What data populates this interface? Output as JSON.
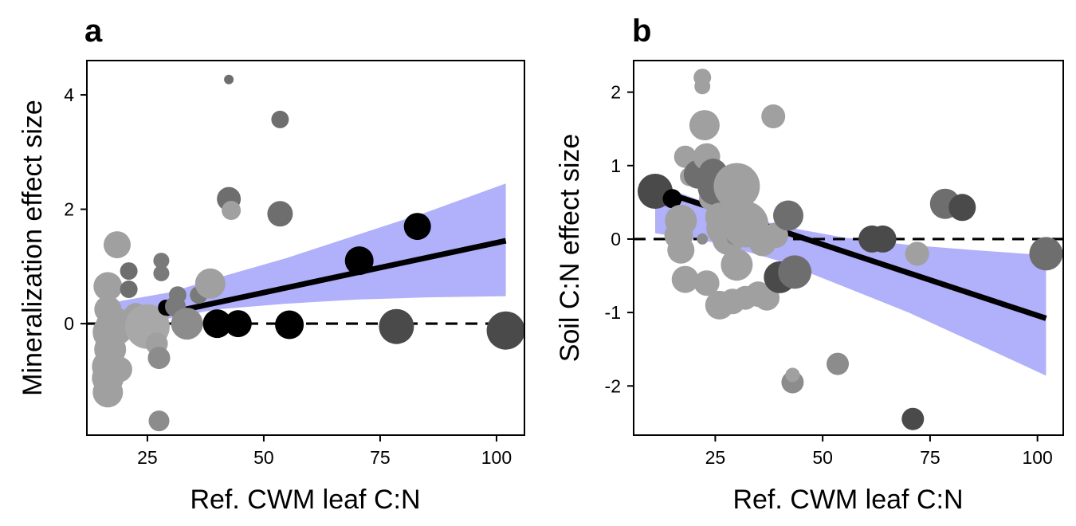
{
  "chart_data": [
    {
      "type": "scatter",
      "panel_label": "a",
      "xlabel": "Ref. CWM leaf C:N",
      "ylabel": "Mineralization effect size",
      "xlim": [
        12,
        106
      ],
      "ylim": [
        -1.95,
        4.6
      ],
      "xticks": [
        25,
        50,
        75,
        100
      ],
      "yticks": [
        0,
        2,
        4
      ],
      "reference_line_y": 0,
      "ribbon_color": "#b0b0fb",
      "line_color": "#000000",
      "fit_line": {
        "x": [
          16,
          102
        ],
        "y": [
          -0.05,
          1.45
        ]
      },
      "ribbon": {
        "x": [
          16,
          30,
          40,
          55,
          70,
          85,
          102
        ],
        "lower": [
          -0.45,
          0.1,
          0.25,
          0.35,
          0.42,
          0.46,
          0.48
        ],
        "upper": [
          0.35,
          0.55,
          0.8,
          1.15,
          1.55,
          1.95,
          2.45
        ]
      },
      "points": [
        {
          "x": 16.5,
          "y": 0.65,
          "size": 18,
          "color": "#a0a0a0"
        },
        {
          "x": 16.5,
          "y": 0.25,
          "size": 17,
          "color": "#a0a0a0"
        },
        {
          "x": 17,
          "y": -0.15,
          "size": 22,
          "color": "#a0a0a0"
        },
        {
          "x": 17,
          "y": -0.45,
          "size": 20,
          "color": "#a0a0a0"
        },
        {
          "x": 16.5,
          "y": -0.75,
          "size": 20,
          "color": "#a0a0a0"
        },
        {
          "x": 16.5,
          "y": -0.95,
          "size": 20,
          "color": "#a0a0a0"
        },
        {
          "x": 16.5,
          "y": -1.2,
          "size": 19,
          "color": "#a0a0a0"
        },
        {
          "x": 18,
          "y": -0.05,
          "size": 24,
          "color": "#a0a0a0"
        },
        {
          "x": 19,
          "y": -0.8,
          "size": 16,
          "color": "#a0a0a0"
        },
        {
          "x": 18.5,
          "y": 1.38,
          "size": 17,
          "color": "#a0a0a0"
        },
        {
          "x": 21,
          "y": 0.92,
          "size": 11,
          "color": "#6e6e6e"
        },
        {
          "x": 21,
          "y": 0.6,
          "size": 11,
          "color": "#6e6e6e"
        },
        {
          "x": 22.5,
          "y": 0.15,
          "size": 15,
          "color": "#a0a0a0"
        },
        {
          "x": 25,
          "y": -0.05,
          "size": 28,
          "color": "#a8a8a8"
        },
        {
          "x": 27,
          "y": -0.35,
          "size": 14,
          "color": "#a0a0a0"
        },
        {
          "x": 27.5,
          "y": -0.6,
          "size": 14,
          "color": "#8c8c8c"
        },
        {
          "x": 27.5,
          "y": -1.7,
          "size": 13,
          "color": "#8c8c8c"
        },
        {
          "x": 28,
          "y": 1.1,
          "size": 10,
          "color": "#7a7a7a"
        },
        {
          "x": 28,
          "y": 0.88,
          "size": 10,
          "color": "#7a7a7a"
        },
        {
          "x": 29,
          "y": 0.28,
          "size": 10,
          "color": "#000000"
        },
        {
          "x": 31,
          "y": 0.3,
          "size": 13,
          "color": "#7a7a7a"
        },
        {
          "x": 31.5,
          "y": 0.5,
          "size": 11,
          "color": "#7a7a7a"
        },
        {
          "x": 33.5,
          "y": 0.0,
          "size": 20,
          "color": "#8c8c8c"
        },
        {
          "x": 36,
          "y": 0.5,
          "size": 11,
          "color": "#7a7a7a"
        },
        {
          "x": 38.5,
          "y": 0.7,
          "size": 19,
          "color": "#a0a0a0"
        },
        {
          "x": 40,
          "y": 0.0,
          "size": 18,
          "color": "#000000"
        },
        {
          "x": 44.5,
          "y": 0.0,
          "size": 17,
          "color": "#000000"
        },
        {
          "x": 42.5,
          "y": 4.27,
          "size": 6,
          "color": "#6e6e6e"
        },
        {
          "x": 42.5,
          "y": 2.18,
          "size": 15,
          "color": "#6e6e6e"
        },
        {
          "x": 43,
          "y": 1.98,
          "size": 12,
          "color": "#a0a0a0"
        },
        {
          "x": 53.5,
          "y": 3.57,
          "size": 11,
          "color": "#6e6e6e"
        },
        {
          "x": 53.5,
          "y": 1.92,
          "size": 16,
          "color": "#6e6e6e"
        },
        {
          "x": 55.5,
          "y": -0.02,
          "size": 18,
          "color": "#000000"
        },
        {
          "x": 70.5,
          "y": 1.1,
          "size": 18,
          "color": "#000000"
        },
        {
          "x": 78.5,
          "y": -0.05,
          "size": 22,
          "color": "#4a4a4a"
        },
        {
          "x": 83,
          "y": 1.7,
          "size": 17,
          "color": "#000000"
        },
        {
          "x": 102,
          "y": -0.12,
          "size": 24,
          "color": "#4a4a4a"
        }
      ]
    },
    {
      "type": "scatter",
      "panel_label": "b",
      "xlabel": "Ref. CWM leaf C:N",
      "ylabel": "Soil C:N effect size",
      "xlim": [
        6,
        106
      ],
      "ylim": [
        -2.67,
        2.43
      ],
      "xticks": [
        25,
        50,
        75,
        100
      ],
      "yticks": [
        2,
        1,
        0,
        -1,
        -2
      ],
      "ytick_labels": [
        "2",
        "1",
        "0",
        "-1",
        "-2"
      ],
      "reference_line_y": 0,
      "ribbon_color": "#b0b0fb",
      "line_color": "#000000",
      "fit_line": {
        "x": [
          11,
          102
        ],
        "y": [
          0.68,
          -1.08
        ]
      },
      "ribbon": {
        "x": [
          11,
          25,
          40,
          55,
          70,
          85,
          102
        ],
        "lower": [
          0.08,
          -0.05,
          -0.3,
          -0.65,
          -1.0,
          -1.4,
          -1.86
        ],
        "upper": [
          0.75,
          0.45,
          0.18,
          0.02,
          -0.08,
          -0.15,
          -0.22
        ]
      },
      "points": [
        {
          "x": 11,
          "y": 0.65,
          "size": 22,
          "color": "#4a4a4a"
        },
        {
          "x": 15,
          "y": 0.55,
          "size": 12,
          "color": "#000000"
        },
        {
          "x": 17,
          "y": 0.25,
          "size": 20,
          "color": "#a0a0a0"
        },
        {
          "x": 16.5,
          "y": 0.05,
          "size": 18,
          "color": "#a0a0a0"
        },
        {
          "x": 17,
          "y": -0.15,
          "size": 17,
          "color": "#a0a0a0"
        },
        {
          "x": 18,
          "y": -0.55,
          "size": 17,
          "color": "#a0a0a0"
        },
        {
          "x": 18,
          "y": 1.12,
          "size": 14,
          "color": "#a0a0a0"
        },
        {
          "x": 19,
          "y": 0.85,
          "size": 12,
          "color": "#a0a0a0"
        },
        {
          "x": 21,
          "y": 0.88,
          "size": 18,
          "color": "#6e6e6e"
        },
        {
          "x": 22,
          "y": 2.2,
          "size": 11,
          "color": "#a0a0a0"
        },
        {
          "x": 22,
          "y": 2.08,
          "size": 10,
          "color": "#a0a0a0"
        },
        {
          "x": 22.5,
          "y": 1.55,
          "size": 19,
          "color": "#a0a0a0"
        },
        {
          "x": 23,
          "y": 1.12,
          "size": 17,
          "color": "#a0a0a0"
        },
        {
          "x": 24,
          "y": 0.55,
          "size": 15,
          "color": "#a0a0a0"
        },
        {
          "x": 24.5,
          "y": 0.9,
          "size": 18,
          "color": "#6e6e6e"
        },
        {
          "x": 25,
          "y": 0.7,
          "size": 22,
          "color": "#6e6e6e"
        },
        {
          "x": 23,
          "y": -0.6,
          "size": 16,
          "color": "#a0a0a0"
        },
        {
          "x": 26,
          "y": 0.3,
          "size": 18,
          "color": "#a0a0a0"
        },
        {
          "x": 27,
          "y": 0.15,
          "size": 22,
          "color": "#a0a0a0"
        },
        {
          "x": 28,
          "y": 0.0,
          "size": 20,
          "color": "#a0a0a0"
        },
        {
          "x": 22,
          "y": 0.0,
          "size": 7,
          "color": "#8c8c8c"
        },
        {
          "x": 29,
          "y": 0.0,
          "size": 7,
          "color": "#8c8c8c"
        },
        {
          "x": 33,
          "y": 0.0,
          "size": 7,
          "color": "#8c8c8c"
        },
        {
          "x": 37,
          "y": 0.0,
          "size": 7,
          "color": "#8c8c8c"
        },
        {
          "x": 30,
          "y": 0.72,
          "size": 29,
          "color": "#a0a0a0"
        },
        {
          "x": 32,
          "y": 0.2,
          "size": 29,
          "color": "#a0a0a0"
        },
        {
          "x": 30,
          "y": -0.35,
          "size": 20,
          "color": "#a0a0a0"
        },
        {
          "x": 26,
          "y": -0.9,
          "size": 18,
          "color": "#a0a0a0"
        },
        {
          "x": 29,
          "y": -0.85,
          "size": 16,
          "color": "#a0a0a0"
        },
        {
          "x": 32,
          "y": -0.8,
          "size": 15,
          "color": "#a0a0a0"
        },
        {
          "x": 35,
          "y": -0.75,
          "size": 16,
          "color": "#a0a0a0"
        },
        {
          "x": 37,
          "y": -0.8,
          "size": 16,
          "color": "#a0a0a0"
        },
        {
          "x": 36,
          "y": -0.05,
          "size": 17,
          "color": "#a0a0a0"
        },
        {
          "x": 39,
          "y": 0.05,
          "size": 16,
          "color": "#a0a0a0"
        },
        {
          "x": 38.5,
          "y": 1.67,
          "size": 15,
          "color": "#a0a0a0"
        },
        {
          "x": 40,
          "y": -0.52,
          "size": 20,
          "color": "#4a4a4a"
        },
        {
          "x": 42,
          "y": 0.32,
          "size": 19,
          "color": "#6e6e6e"
        },
        {
          "x": 43.5,
          "y": -0.45,
          "size": 21,
          "color": "#6e6e6e"
        },
        {
          "x": 43,
          "y": -1.95,
          "size": 14,
          "color": "#8c8c8c"
        },
        {
          "x": 43,
          "y": -1.85,
          "size": 9,
          "color": "#a0a0a0"
        },
        {
          "x": 53.5,
          "y": -1.7,
          "size": 14,
          "color": "#8c8c8c"
        },
        {
          "x": 61.5,
          "y": 0.0,
          "size": 17,
          "color": "#4a4a4a"
        },
        {
          "x": 64,
          "y": 0.0,
          "size": 17,
          "color": "#4a4a4a"
        },
        {
          "x": 71,
          "y": -2.45,
          "size": 14,
          "color": "#4a4a4a"
        },
        {
          "x": 72,
          "y": -0.2,
          "size": 15,
          "color": "#a0a0a0"
        },
        {
          "x": 78.5,
          "y": 0.48,
          "size": 19,
          "color": "#6e6e6e"
        },
        {
          "x": 82.5,
          "y": 0.43,
          "size": 17,
          "color": "#4a4a4a"
        },
        {
          "x": 102,
          "y": -0.2,
          "size": 21,
          "color": "#6e6e6e"
        }
      ]
    }
  ]
}
